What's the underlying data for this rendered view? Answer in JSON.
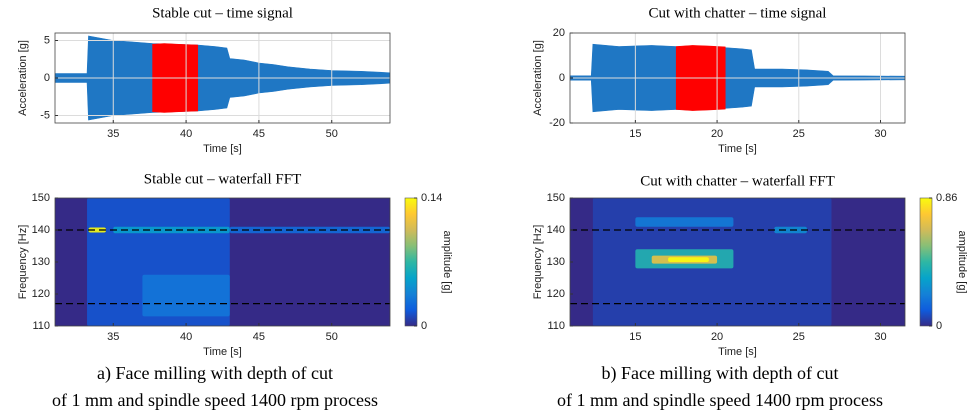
{
  "chart_data": [
    {
      "type": "signal",
      "title": "Stable cut – time signal",
      "xlabel": "Time [s]",
      "ylabel": "Acceleration [g]",
      "xlim": [
        31,
        54
      ],
      "ylim": [
        -6,
        6
      ],
      "xticks": [
        35,
        40,
        45,
        50
      ],
      "yticks": [
        -5,
        0,
        5
      ],
      "grid": true,
      "color": "#1f77c4",
      "x": [
        31,
        33.2,
        33.3,
        35,
        37.7,
        40.8,
        42,
        42.8,
        43,
        44,
        45,
        46,
        47,
        48.5,
        50,
        52,
        54
      ],
      "values": [
        0.6,
        0.6,
        5.6,
        5,
        4.6,
        4.4,
        4.2,
        4,
        2.6,
        2.4,
        2,
        1.8,
        1.5,
        1.2,
        1,
        0.9,
        0.7
      ],
      "highlight": {
        "color": "#ff0000",
        "x": [
          37.7,
          38.5,
          39.5,
          40.8
        ],
        "values": [
          4.5,
          4.6,
          4.5,
          4.4
        ]
      }
    },
    {
      "type": "signal",
      "title": "Cut with chatter – time signal",
      "xlabel": "Time [s]",
      "ylabel": "Acceleration [g]",
      "xlim": [
        11,
        31.5
      ],
      "ylim": [
        -20,
        20
      ],
      "xticks": [
        15,
        20,
        25,
        30
      ],
      "yticks": [
        -20,
        0,
        20
      ],
      "grid": true,
      "color": "#1f77c4",
      "x": [
        11,
        12.3,
        12.4,
        14,
        16,
        17.5,
        20.5,
        21.5,
        22.1,
        22.3,
        24,
        25.5,
        26.8,
        27.1,
        29,
        31.5
      ],
      "values": [
        1,
        1,
        15,
        14,
        14.5,
        14,
        13.5,
        13,
        12.5,
        4,
        4,
        3.6,
        3,
        1,
        0.9,
        0.8
      ],
      "highlight": {
        "color": "#ff0000",
        "x": [
          17.5,
          18.5,
          19.5,
          20.5
        ],
        "values": [
          14,
          14.5,
          14.2,
          13.8
        ]
      }
    },
    {
      "type": "waterfall",
      "title": "Stable cut – waterfall FFT",
      "xlabel": "Time [s]",
      "ylabel": "Frequency [Hz]",
      "xlim": [
        31,
        54
      ],
      "ylim": [
        110,
        150
      ],
      "xticks": [
        35,
        40,
        45,
        50
      ],
      "yticks": [
        110,
        120,
        130,
        140,
        150
      ],
      "colormap": "parula",
      "clim": [
        0,
        0.14
      ],
      "cticks": [
        0,
        0.14
      ],
      "clabel": "amplitude [g]",
      "hlines": [
        140,
        117
      ],
      "cells": [
        {
          "x": [
            33.2,
            43
          ],
          "y": [
            110,
            150
          ],
          "value": 0.015
        },
        {
          "x": [
            37,
            43
          ],
          "y": [
            113,
            126
          ],
          "value": 0.03
        },
        {
          "x": [
            35,
            43
          ],
          "y": [
            139,
            141
          ],
          "value": 0.05
        },
        {
          "x": [
            43,
            54
          ],
          "y": [
            139,
            141
          ],
          "value": 0.025
        },
        {
          "x": [
            33.3,
            34.5
          ],
          "y": [
            139.2,
            140.8
          ],
          "value": 0.14
        }
      ]
    },
    {
      "type": "waterfall",
      "title": "Cut with chatter – waterfall FFT",
      "xlabel": "Time [s]",
      "ylabel": "Frequency [Hz]",
      "xlim": [
        11,
        31.5
      ],
      "ylim": [
        110,
        150
      ],
      "xticks": [
        15,
        20,
        25,
        30
      ],
      "yticks": [
        110,
        120,
        130,
        140,
        150
      ],
      "colormap": "parula",
      "clim": [
        0,
        0.86
      ],
      "cticks": [
        0,
        0.86
      ],
      "clabel": "amplitude [g]",
      "hlines": [
        140,
        117
      ],
      "cells": [
        {
          "x": [
            12.4,
            27
          ],
          "y": [
            110,
            150
          ],
          "value": 0.05
        },
        {
          "x": [
            15,
            21
          ],
          "y": [
            141,
            144
          ],
          "value": 0.2
        },
        {
          "x": [
            23.5,
            25.5
          ],
          "y": [
            139,
            141
          ],
          "value": 0.25
        },
        {
          "x": [
            15,
            21
          ],
          "y": [
            128,
            134
          ],
          "value": 0.4
        },
        {
          "x": [
            16,
            20
          ],
          "y": [
            129.5,
            132
          ],
          "value": 0.7
        },
        {
          "x": [
            17,
            19.5
          ],
          "y": [
            130,
            131.5
          ],
          "value": 0.86
        }
      ]
    }
  ],
  "captions": [
    {
      "line1": "a) Face milling with depth of cut",
      "line2": "of 1 mm and spindle speed 1400 rpm process"
    },
    {
      "line1": "b) Face milling with depth of cut",
      "line2": "of 1 mm and spindle speed 1400 rpm process"
    }
  ]
}
